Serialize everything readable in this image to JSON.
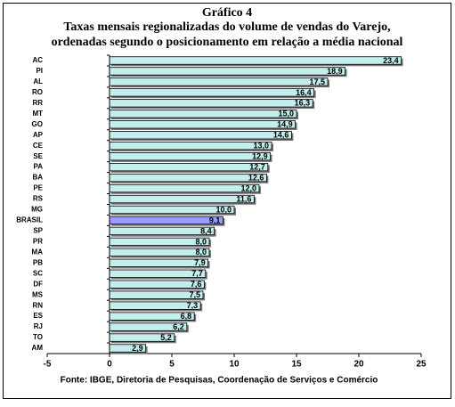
{
  "chart_data": {
    "type": "bar",
    "orientation": "horizontal",
    "title": "Gráfico 4",
    "subtitle": [
      "Taxas mensais regionalizadas  do volume de vendas do Varejo,",
      "ordenadas segundo o posicionamento em relação a média nacional"
    ],
    "source": "Fonte: IBGE, Diretoria de Pesquisas, Coordenação de Serviços e Comércio",
    "categories": [
      "AC",
      "PI",
      "AL",
      "RO",
      "RR",
      "MT",
      "GO",
      "AP",
      "CE",
      "SE",
      "PA",
      "BA",
      "PE",
      "RS",
      "MG",
      "BRASIL",
      "SP",
      "PR",
      "MA",
      "PB",
      "SC",
      "DF",
      "MS",
      "RN",
      "ES",
      "RJ",
      "TO",
      "AM"
    ],
    "values": [
      23.4,
      18.9,
      17.5,
      16.4,
      16.3,
      15.0,
      14.9,
      14.6,
      13.0,
      12.9,
      12.7,
      12.6,
      12.0,
      11.6,
      10.0,
      9.1,
      8.4,
      8.0,
      8.0,
      7.9,
      7.7,
      7.6,
      7.5,
      7.3,
      6.8,
      6.2,
      5.2,
      2.9
    ],
    "value_labels": [
      "23,4",
      "18,9",
      "17,5",
      "16,4",
      "16,3",
      "15,0",
      "14,9",
      "14,6",
      "13,0",
      "12,9",
      "12,7",
      "12,6",
      "12,0",
      "11,6",
      "10,0",
      "9,1",
      "8,4",
      "8,0",
      "8,0",
      "7,9",
      "7,7",
      "7,6",
      "7,5",
      "7,3",
      "6,8",
      "6,2",
      "5,2",
      "2,9"
    ],
    "colors": [
      "#c4eeee",
      "#c4eeee",
      "#c4eeee",
      "#c4eeee",
      "#c4eeee",
      "#c4eeee",
      "#c4eeee",
      "#c4eeee",
      "#c4eeee",
      "#c4eeee",
      "#c4eeee",
      "#c4eeee",
      "#c4eeee",
      "#c4eeee",
      "#c4eeee",
      "#9c9cff",
      "#c4eeee",
      "#c4eeee",
      "#c4eeee",
      "#c4eeee",
      "#c4eeee",
      "#c4eeee",
      "#c4eeee",
      "#c4eeee",
      "#c4eeee",
      "#c4eeee",
      "#c4eeee",
      "#c4eeee"
    ],
    "xlim": [
      -5,
      25
    ],
    "xticks": [
      -5,
      0,
      5,
      10,
      15,
      20,
      25
    ],
    "grid": false
  }
}
